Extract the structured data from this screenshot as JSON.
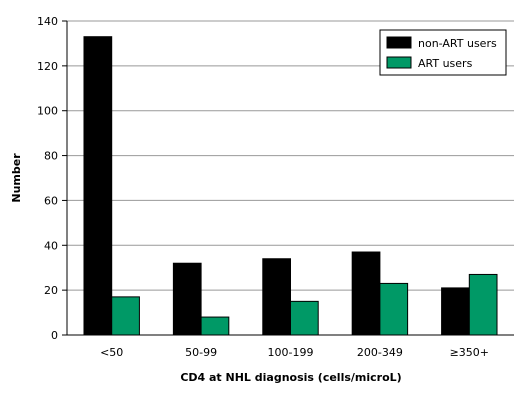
{
  "chart_data": {
    "type": "bar",
    "title": "",
    "xlabel": "CD4 at NHL diagnosis (cells/microL)",
    "ylabel": "Number",
    "ylim": [
      0,
      140
    ],
    "yticks": [
      0,
      20,
      40,
      60,
      80,
      100,
      120,
      140
    ],
    "grid": true,
    "legend_position": "top-right",
    "categories": [
      "<50",
      "50-99",
      "100-199",
      "200-349",
      "≥350+"
    ],
    "series": [
      {
        "name": "non-ART users",
        "color": "#000000",
        "values": [
          133,
          32,
          34,
          37,
          21
        ]
      },
      {
        "name": "ART users",
        "color": "#009966",
        "values": [
          17,
          8,
          15,
          23,
          27
        ]
      }
    ]
  }
}
